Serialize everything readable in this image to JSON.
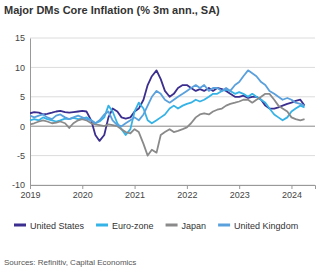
{
  "chart_data": {
    "type": "line",
    "title": "Major DMs Core Inflation (% 3m ann., SA)",
    "source": "Sources: Refinitiv, Capital Economics",
    "x": [
      2019,
      2019.08,
      2019.17,
      2019.25,
      2019.33,
      2019.42,
      2019.5,
      2019.58,
      2019.67,
      2019.75,
      2019.83,
      2019.92,
      2020,
      2020.08,
      2020.17,
      2020.25,
      2020.33,
      2020.42,
      2020.5,
      2020.58,
      2020.67,
      2020.75,
      2020.83,
      2020.92,
      2021,
      2021.08,
      2021.17,
      2021.25,
      2021.33,
      2021.42,
      2021.5,
      2021.58,
      2021.67,
      2021.75,
      2021.83,
      2021.92,
      2022,
      2022.08,
      2022.17,
      2022.25,
      2022.33,
      2022.42,
      2022.5,
      2022.58,
      2022.67,
      2022.75,
      2022.83,
      2022.92,
      2023,
      2023.08,
      2023.17,
      2023.25,
      2023.33,
      2023.42,
      2023.5,
      2023.58,
      2023.67,
      2023.75,
      2023.83,
      2023.92,
      2024,
      2024.08,
      2024.17,
      2024.25
    ],
    "series": [
      {
        "name": "United States",
        "color": "#3b2e8f",
        "values": [
          2.2,
          2.4,
          2.3,
          2.0,
          2.1,
          2.3,
          2.5,
          2.6,
          2.4,
          2.3,
          2.4,
          2.5,
          2.6,
          2.5,
          1.0,
          -1.5,
          -2.5,
          -1.5,
          1.5,
          3.0,
          2.5,
          1.5,
          1.3,
          1.5,
          2.5,
          3.0,
          4.5,
          7.0,
          8.5,
          9.5,
          8.0,
          6.0,
          5.0,
          5.5,
          6.5,
          7.0,
          7.0,
          6.5,
          6.0,
          6.3,
          6.0,
          6.5,
          6.0,
          6.5,
          6.3,
          6.0,
          5.5,
          5.0,
          5.0,
          5.2,
          4.8,
          5.0,
          5.0,
          4.5,
          3.5,
          3.0,
          3.0,
          3.2,
          3.5,
          3.8,
          4.0,
          4.3,
          4.5,
          3.5
        ]
      },
      {
        "name": "Euro-zone",
        "color": "#35b3e6",
        "values": [
          1.0,
          1.2,
          1.0,
          1.5,
          1.2,
          1.0,
          0.8,
          1.0,
          1.3,
          1.2,
          1.4,
          1.2,
          1.3,
          1.5,
          1.0,
          0.5,
          0.8,
          1.5,
          3.5,
          2.5,
          0.5,
          -0.5,
          -1.5,
          -0.5,
          2.5,
          4.0,
          3.0,
          1.0,
          0.5,
          1.0,
          1.5,
          2.0,
          3.0,
          3.5,
          3.0,
          3.5,
          3.8,
          4.0,
          4.5,
          4.2,
          4.5,
          5.0,
          5.5,
          5.5,
          6.0,
          6.2,
          6.0,
          5.5,
          5.8,
          5.5,
          5.0,
          5.5,
          5.0,
          4.5,
          4.0,
          3.0,
          2.0,
          1.5,
          1.0,
          1.5,
          2.5,
          3.0,
          3.5,
          3.2
        ]
      },
      {
        "name": "Japan",
        "color": "#8a8a8a",
        "values": [
          0.3,
          0.5,
          0.8,
          1.0,
          0.8,
          0.5,
          0.6,
          0.8,
          0.5,
          -0.3,
          0.5,
          1.0,
          1.2,
          1.0,
          0.5,
          0.3,
          0.2,
          0.0,
          0.3,
          0.2,
          0.0,
          -0.5,
          -1.0,
          -1.2,
          -0.5,
          -1.0,
          -3.0,
          -5.0,
          -4.0,
          -4.5,
          -1.5,
          -1.0,
          -0.5,
          -1.0,
          -0.8,
          -0.5,
          -0.2,
          0.5,
          1.5,
          2.0,
          2.2,
          2.0,
          2.5,
          2.8,
          3.0,
          3.5,
          3.8,
          4.0,
          4.2,
          4.5,
          4.5,
          4.0,
          4.5,
          5.0,
          5.5,
          5.5,
          4.5,
          3.5,
          3.0,
          2.5,
          1.5,
          1.2,
          1.0,
          1.2
        ]
      },
      {
        "name": "United Kingdom",
        "color": "#5aa0dc",
        "values": [
          1.8,
          1.5,
          1.8,
          2.0,
          1.5,
          1.2,
          1.8,
          2.0,
          1.5,
          1.2,
          1.5,
          1.8,
          1.5,
          1.2,
          1.0,
          0.5,
          1.0,
          2.0,
          2.5,
          1.0,
          0.2,
          0.0,
          0.5,
          1.0,
          1.5,
          1.0,
          2.0,
          3.5,
          5.0,
          6.0,
          5.5,
          4.5,
          4.0,
          4.5,
          5.0,
          5.5,
          6.0,
          6.5,
          7.0,
          6.5,
          7.0,
          6.0,
          6.5,
          6.5,
          6.0,
          6.5,
          6.0,
          7.0,
          7.5,
          8.5,
          9.5,
          9.0,
          8.5,
          7.5,
          7.0,
          6.0,
          5.5,
          5.0,
          4.5,
          4.8,
          4.5,
          4.0,
          3.8,
          3.5
        ]
      }
    ],
    "xlim": [
      2019,
      2024.45
    ],
    "xticks": [
      2019,
      2020,
      2021,
      2022,
      2023,
      2024
    ],
    "ylim": [
      -10,
      15
    ],
    "yticks": [
      -10,
      -5,
      0,
      5,
      10,
      15
    ],
    "grid": true,
    "legend": "bottom"
  }
}
